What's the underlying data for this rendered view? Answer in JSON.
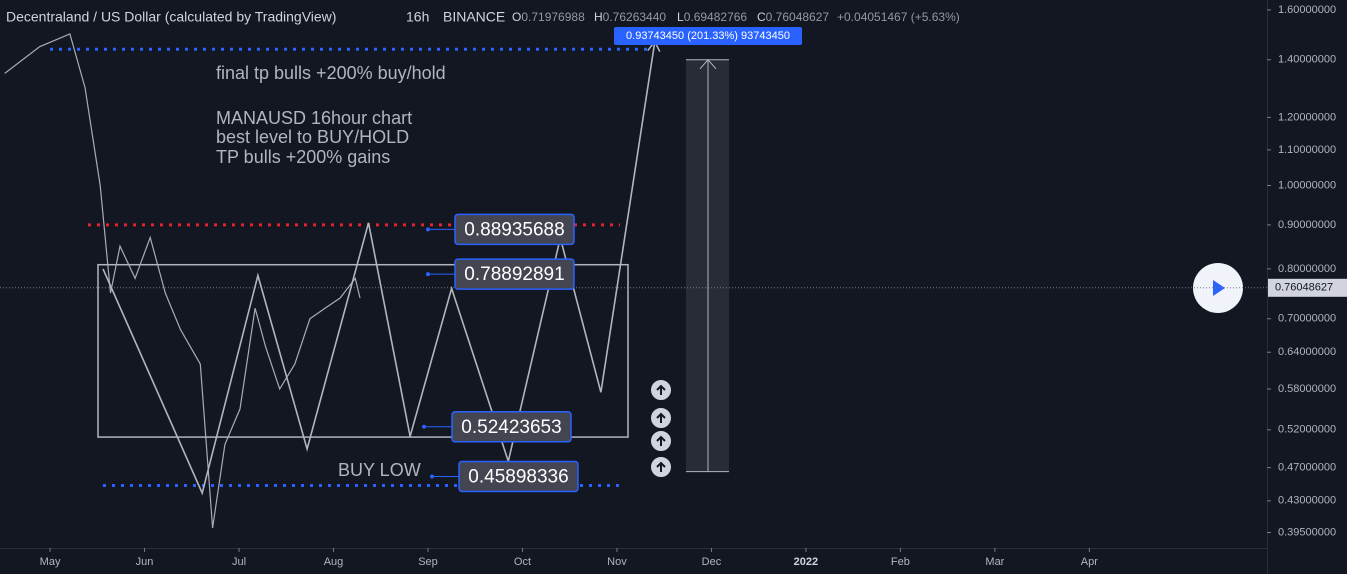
{
  "chart_data": {
    "type": "line",
    "header": {
      "title": "Decentraland / US Dollar (calculated by TradingView)",
      "interval": "16h",
      "exchange": "BINANCE",
      "ohlc": [
        {
          "key": "O",
          "value": "0.71976988"
        },
        {
          "key": "H",
          "value": "0.76263440"
        },
        {
          "key": "L",
          "value": "0.69482766"
        },
        {
          "key": "C",
          "value": "0.76048627"
        }
      ],
      "change": "+0.04051467 (+5.63%)"
    },
    "log_scale": true,
    "ylim": [
      0.379,
      1.643
    ],
    "yticks": [
      {
        "value": 1.6,
        "label": "1.60000000"
      },
      {
        "value": 1.4,
        "label": "1.40000000"
      },
      {
        "value": 1.2,
        "label": "1.20000000"
      },
      {
        "value": 1.1,
        "label": "1.10000000"
      },
      {
        "value": 1.0,
        "label": "1.00000000"
      },
      {
        "value": 0.9,
        "label": "0.90000000"
      },
      {
        "value": 0.8,
        "label": "0.80000000"
      },
      {
        "value": 0.7,
        "label": "0.70000000"
      },
      {
        "value": 0.64,
        "label": "0.64000000"
      },
      {
        "value": 0.58,
        "label": "0.58000000"
      },
      {
        "value": 0.52,
        "label": "0.52000000"
      },
      {
        "value": 0.47,
        "label": "0.47000000"
      },
      {
        "value": 0.43,
        "label": "0.43000000"
      },
      {
        "value": 0.395,
        "label": "0.39500000"
      }
    ],
    "xlim": [
      -0.53,
      12.88
    ],
    "xticks": [
      {
        "value": 0,
        "label": "May"
      },
      {
        "value": 1,
        "label": "Jun"
      },
      {
        "value": 2,
        "label": "Jul"
      },
      {
        "value": 3,
        "label": "Aug"
      },
      {
        "value": 4,
        "label": "Sep"
      },
      {
        "value": 5,
        "label": "Oct"
      },
      {
        "value": 6,
        "label": "Nov"
      },
      {
        "value": 7,
        "label": "Dec"
      },
      {
        "value": 8,
        "label": "2022"
      },
      {
        "value": 9,
        "label": "Feb"
      },
      {
        "value": 10,
        "label": "Mar"
      },
      {
        "value": 11,
        "label": "Apr"
      }
    ],
    "series": [
      {
        "color": "#a9acb4",
        "x": [
          -0.48,
          -0.11,
          0.21,
          0.37,
          0.53,
          0.64,
          0.74,
          0.9,
          1.06,
          1.22,
          1.38,
          1.59,
          1.72,
          1.85,
          2.01,
          2.17,
          2.28,
          2.43,
          2.59,
          2.75,
          2.91,
          3.07,
          3.23,
          3.28
        ],
        "values": [
          1.35,
          1.45,
          1.5,
          1.3,
          1.0,
          0.75,
          0.85,
          0.78,
          0.87,
          0.75,
          0.68,
          0.62,
          0.4,
          0.5,
          0.55,
          0.72,
          0.65,
          0.58,
          0.62,
          0.7,
          0.72,
          0.74,
          0.78,
          0.74
        ]
      },
      {
        "color": "#b2b5be",
        "x": [
          0.56,
          1.61,
          2.2,
          2.72,
          3.37,
          3.81,
          4.25,
          4.85,
          5.4,
          5.83,
          6.4
        ],
        "values": [
          0.8,
          0.439,
          0.786,
          0.494,
          0.905,
          0.511,
          0.759,
          0.478,
          0.869,
          0.575,
          1.47
        ]
      }
    ],
    "levels": [
      {
        "value": 1.44,
        "color": "#2962ff"
      },
      {
        "value": 0.9,
        "color": "#e5232c"
      },
      {
        "value": 0.448,
        "color": "#2962ff"
      }
    ],
    "range_box": {
      "top": 0.809,
      "bottom": 0.51
    },
    "price_labels": [
      0.88935688,
      0.78892891,
      0.52423653,
      0.45898336
    ],
    "measure": {
      "from": 0.465,
      "to": 1.4,
      "label": "0.93743450 (201.33%) 93743450"
    },
    "current_price": {
      "value": 0.76048627,
      "label": "0.76048627"
    },
    "annotations": [
      "final tp bulls +200% buy/hold",
      "MANAUSD 16hour chart",
      "best level to BUY/HOLD",
      "TP bulls +200% gains",
      "BUY LOW"
    ]
  }
}
